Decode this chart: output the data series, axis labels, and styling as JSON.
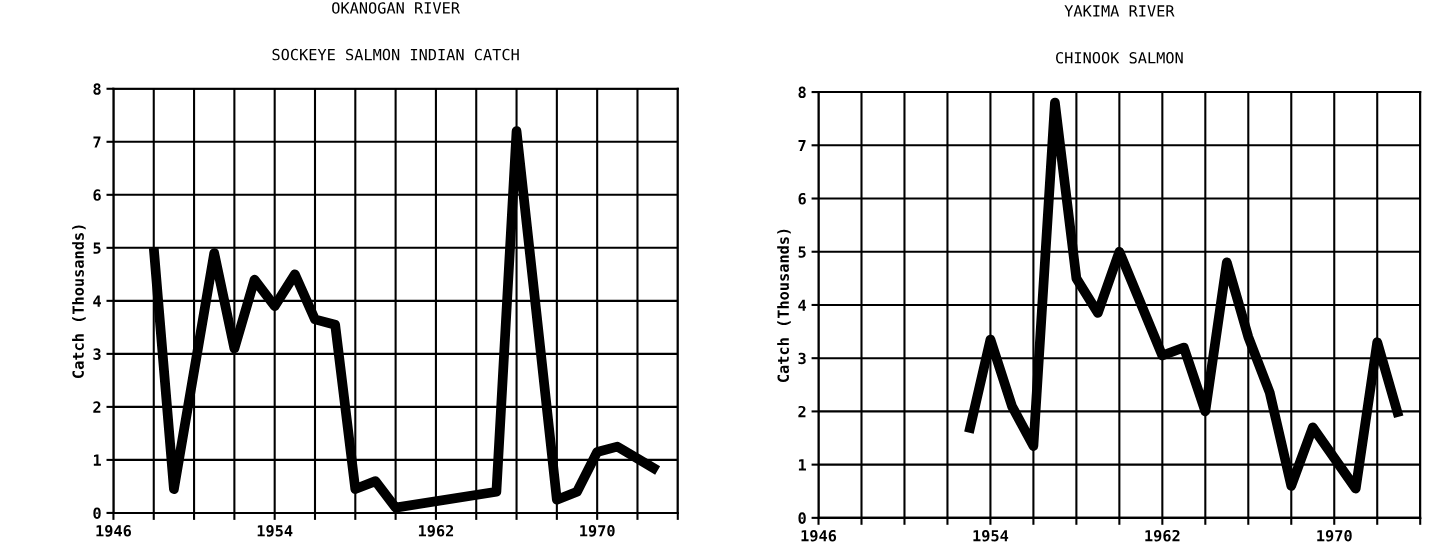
{
  "chart_data": [
    {
      "type": "line",
      "title": "OKANOGAN RIVER",
      "subtitle": "SOCKEYE SALMON INDIAN CATCH",
      "ylabel": "Catch (Thousands)",
      "x": [
        1948,
        1949,
        1951,
        1952,
        1953,
        1954,
        1955,
        1956,
        1957,
        1958,
        1959,
        1960,
        1965,
        1966,
        1968,
        1969,
        1970,
        1971,
        1973
      ],
      "series": [
        {
          "color": "#000000",
          "values": [
            5.0,
            0.45,
            4.9,
            3.1,
            4.4,
            3.9,
            4.5,
            3.65,
            3.55,
            0.45,
            0.6,
            0.1,
            0.4,
            7.2,
            0.25,
            0.4,
            1.15,
            1.25,
            0.8
          ]
        }
      ],
      "xlim": [
        1946,
        1974
      ],
      "xticks": [
        1946,
        {
          "value": 1948,
          "label": null
        },
        {
          "value": 1950,
          "label": null
        },
        {
          "value": 1952,
          "label": null
        },
        1954,
        {
          "value": 1956,
          "label": null
        },
        {
          "value": 1958,
          "label": null
        },
        {
          "value": 1960,
          "label": null
        },
        1962,
        {
          "value": 1964,
          "label": null
        },
        {
          "value": 1966,
          "label": null
        },
        {
          "value": 1968,
          "label": null
        },
        1970,
        {
          "value": 1972,
          "label": null
        },
        {
          "value": 1974,
          "label": null
        }
      ],
      "ylim": [
        0,
        8
      ],
      "yticks": [
        0,
        1,
        2,
        3,
        4,
        5,
        6,
        7,
        8
      ],
      "grid": true
    },
    {
      "type": "line",
      "title": "YAKIMA RIVER",
      "subtitle": "CHINOOK SALMON",
      "ylabel": "Catch (Thousands)",
      "x": [
        1953,
        1954,
        1955,
        1956,
        1957,
        1958,
        1959,
        1960,
        1962,
        1963,
        1964,
        1965,
        1966,
        1967,
        1968,
        1969,
        1971,
        1972,
        1973
      ],
      "series": [
        {
          "color": "#000000",
          "values": [
            1.6,
            3.35,
            2.1,
            1.35,
            7.8,
            4.5,
            3.85,
            5.0,
            3.05,
            3.2,
            2.0,
            4.8,
            3.4,
            2.35,
            0.6,
            1.7,
            0.55,
            3.3,
            1.9
          ]
        }
      ],
      "xlim": [
        1946,
        1974
      ],
      "xticks": [
        1946,
        {
          "value": 1948,
          "label": null
        },
        {
          "value": 1950,
          "label": null
        },
        {
          "value": 1952,
          "label": null
        },
        1954,
        {
          "value": 1956,
          "label": null
        },
        {
          "value": 1958,
          "label": null
        },
        {
          "value": 1960,
          "label": null
        },
        1962,
        {
          "value": 1964,
          "label": null
        },
        {
          "value": 1966,
          "label": null
        },
        {
          "value": 1968,
          "label": null
        },
        1970,
        {
          "value": 1972,
          "label": null
        },
        {
          "value": 1974,
          "label": null
        }
      ],
      "ylim": [
        0,
        8
      ],
      "yticks": [
        0,
        1,
        2,
        3,
        4,
        5,
        6,
        7,
        8
      ],
      "grid": true
    }
  ]
}
